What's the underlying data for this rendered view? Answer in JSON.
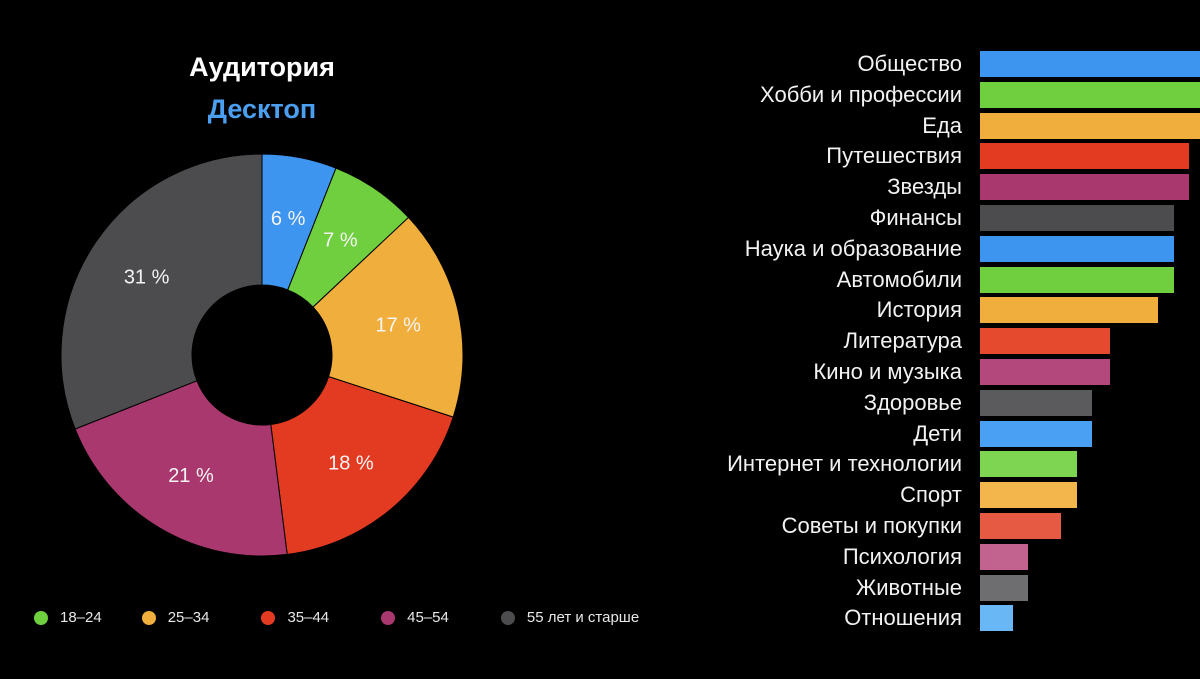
{
  "chart_data": [
    {
      "type": "pie",
      "title": "Аудитория",
      "subtitle": "Десктоп",
      "subtitle_color": "#4a9ff0",
      "slices": [
        {
          "label": "6 %",
          "value": 6,
          "color": "#3d95f0"
        },
        {
          "label": "7 %",
          "value": 7,
          "color": "#6fcf3f"
        },
        {
          "label": "17 %",
          "value": 17,
          "color": "#f0ae3c"
        },
        {
          "label": "18 %",
          "value": 18,
          "color": "#e33b22"
        },
        {
          "label": "21 %",
          "value": 21,
          "color": "#a8386e"
        },
        {
          "label": "31 %",
          "value": 31,
          "color": "#4c4c4f"
        }
      ],
      "legend": [
        {
          "label": "18–24",
          "color": "#6fcf3f"
        },
        {
          "label": "25–34",
          "color": "#f0ae3c"
        },
        {
          "label": "35–44",
          "color": "#e33b22"
        },
        {
          "label": "45–54",
          "color": "#a8386e"
        },
        {
          "label": "55 лет и старше",
          "color": "#4c4c4f"
        }
      ],
      "legend_placement": "bottom"
    },
    {
      "type": "bar",
      "orientation": "horizontal",
      "categories": [
        "Общество",
        "Хобби и профессии",
        "Еда",
        "Путешествия",
        "Звезды",
        "Финансы",
        "Наука и образование",
        "Автомобили",
        "История",
        "Литература",
        "Кино и музыка",
        "Здоровье",
        "Дети",
        "Интернет и технологии",
        "Спорт",
        "Советы и покупки",
        "Психология",
        "Животные",
        "Отношения"
      ],
      "values": [
        100,
        100,
        100,
        95,
        95,
        88,
        88,
        88,
        81,
        59,
        59,
        51,
        51,
        44,
        44,
        37,
        22,
        22,
        15
      ],
      "colors": [
        "#3d95f0",
        "#6fcf3f",
        "#f0ae3c",
        "#e33b22",
        "#a8386e",
        "#4c4c4f",
        "#3d95f0",
        "#6fcf3f",
        "#f0ae3c",
        "#e54a2e",
        "#b2487b",
        "#5b5b5e",
        "#4aa0f2",
        "#7ed552",
        "#f2b64c",
        "#e65a43",
        "#c2628e",
        "#6e6e70",
        "#6ab7f5"
      ],
      "xlim": [
        0,
        100
      ]
    }
  ]
}
